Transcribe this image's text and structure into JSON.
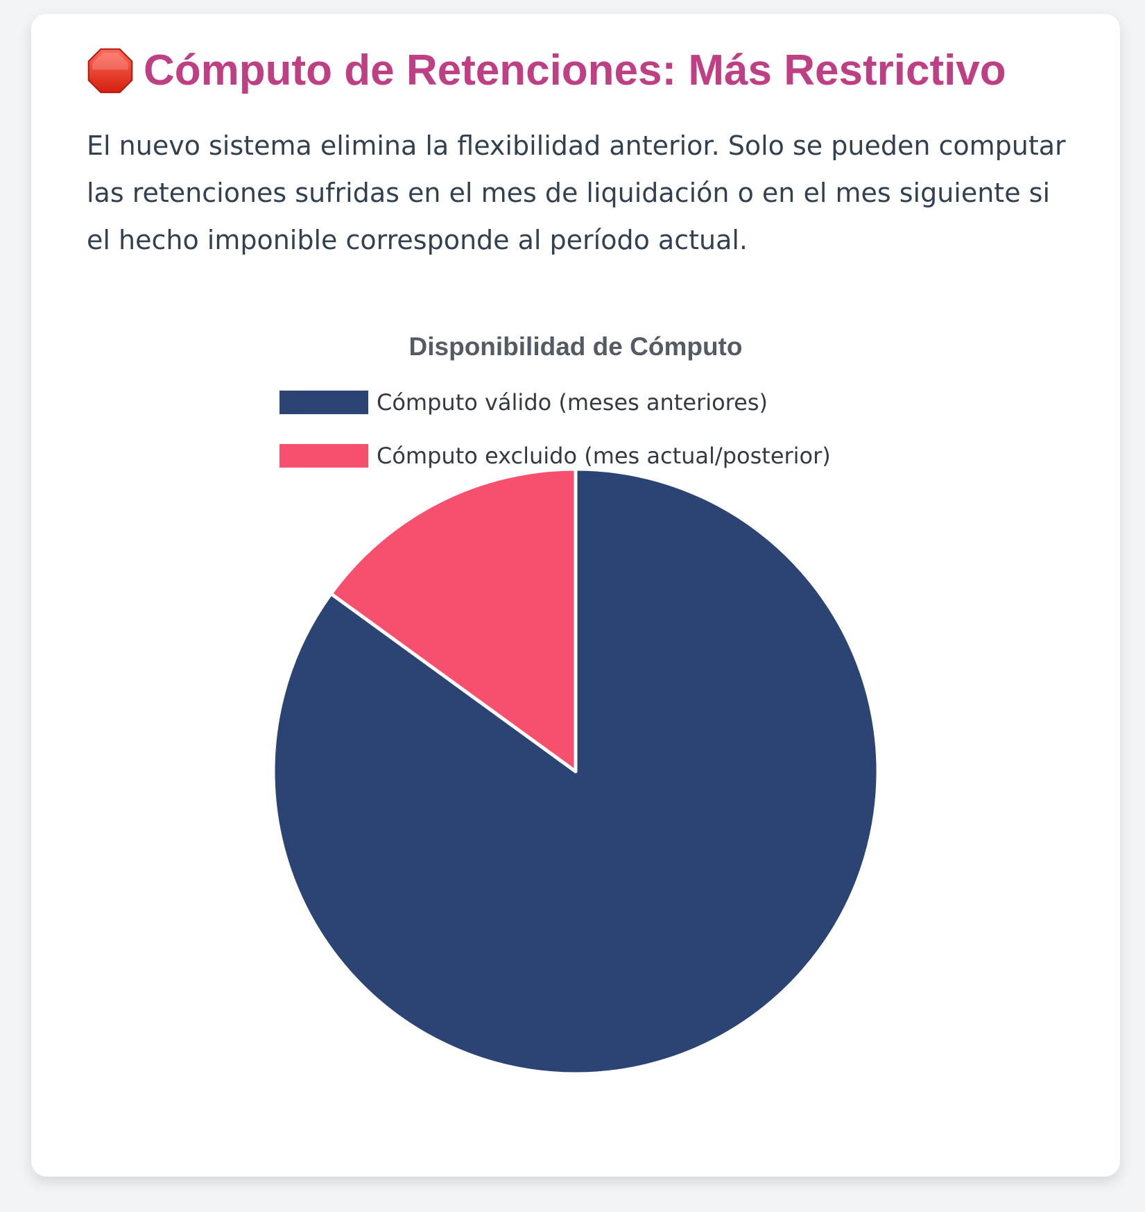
{
  "header": {
    "icon": "stop-sign-icon",
    "title": "Cómputo de Retenciones: Más Restrictivo"
  },
  "description": "El nuevo sistema elimina la flexibilidad anterior. Solo se pueden computar las retenciones sufridas en el mes de liquidación o en el mes siguiente si el hecho imponible corresponde al período actual.",
  "colors": {
    "title": "#be3f84",
    "text": "#33404f",
    "valid": "#2c4474",
    "excluded": "#f7506f"
  },
  "chart_data": {
    "type": "pie",
    "title": "Disponibilidad de Cómputo",
    "legend_position": "top",
    "categories": [
      "Cómputo válido (meses anteriores)",
      "Cómputo excluido (mes actual/posterior)"
    ],
    "values": [
      85,
      15
    ],
    "colors": [
      "#2c4474",
      "#f7506f"
    ]
  }
}
